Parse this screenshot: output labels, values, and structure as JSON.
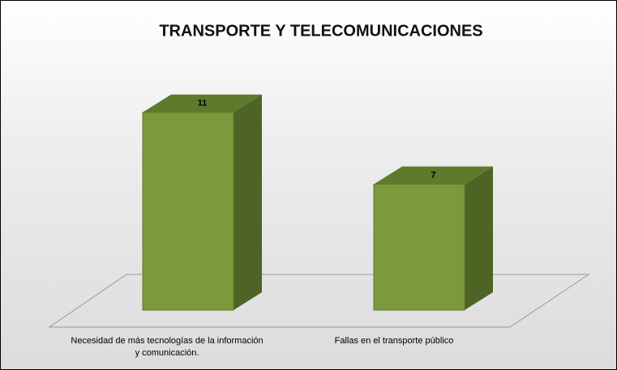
{
  "chart_data": {
    "type": "bar3d",
    "title": "TRANSPORTE Y TELECOMUNICACIONES",
    "categories": [
      "Necesidad de más tecnologías de la información y comunicación.",
      "Fallas en el transporte público"
    ],
    "values": [
      11,
      7
    ],
    "color": "#7a9a3c"
  }
}
